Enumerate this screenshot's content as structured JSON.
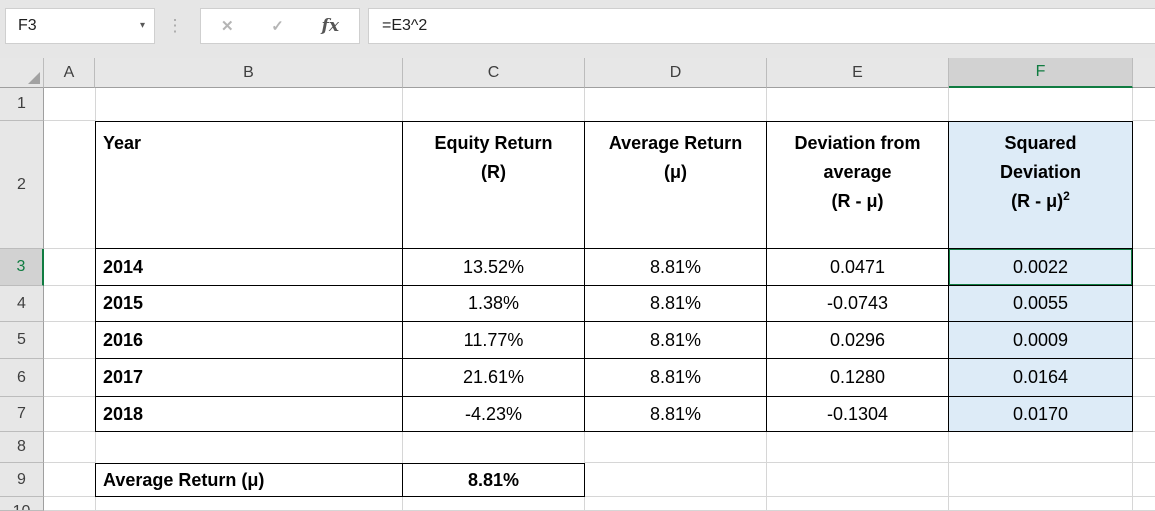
{
  "formula_bar": {
    "cell_reference": "F3",
    "formula": "=E3^2",
    "cancel_glyph": "✕",
    "enter_glyph": "✓",
    "insert_function_glyph": "fx",
    "separator_glyph": "⋮",
    "name_box_caret": "▾"
  },
  "column_headers": [
    "A",
    "B",
    "C",
    "D",
    "E",
    "F"
  ],
  "row_headers": [
    "1",
    "2",
    "3",
    "4",
    "5",
    "6",
    "7",
    "8",
    "9",
    "10"
  ],
  "selection": {
    "active_cell": "F3",
    "active_column": "F",
    "active_row": "3",
    "accent_color": "#107C41",
    "highlight_fill": "#DDEBF7"
  },
  "table": {
    "header": {
      "year": "Year",
      "equity_line1": "Equity Return",
      "equity_line2": "(R)",
      "average_line1": "Average Return",
      "average_line2": "(μ)",
      "deviation_line1": "Deviation from",
      "deviation_line2": "average",
      "deviation_line3": "(R - μ)",
      "squared_line1": "Squared",
      "squared_line2": "Deviation",
      "squared_formula_base": "(R - μ)",
      "squared_formula_sup": "2"
    },
    "rows": [
      {
        "year": "2014",
        "equity_return": "13.52%",
        "average_return": "8.81%",
        "deviation": "0.0471",
        "squared_deviation": "0.0022"
      },
      {
        "year": "2015",
        "equity_return": "1.38%",
        "average_return": "8.81%",
        "deviation": "-0.0743",
        "squared_deviation": "0.0055"
      },
      {
        "year": "2016",
        "equity_return": "11.77%",
        "average_return": "8.81%",
        "deviation": "0.0296",
        "squared_deviation": "0.0009"
      },
      {
        "year": "2017",
        "equity_return": "21.61%",
        "average_return": "8.81%",
        "deviation": "0.1280",
        "squared_deviation": "0.0164"
      },
      {
        "year": "2018",
        "equity_return": "-4.23%",
        "average_return": "8.81%",
        "deviation": "-0.1304",
        "squared_deviation": "0.0170"
      }
    ],
    "summary": {
      "label": "Average Return (μ)",
      "value": "8.81%"
    }
  }
}
